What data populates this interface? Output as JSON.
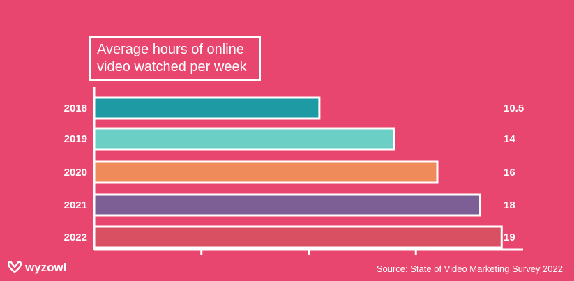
{
  "chart_data": {
    "type": "bar",
    "orientation": "horizontal",
    "title_lines": [
      "Average hours of online",
      "video watched per week"
    ],
    "categories": [
      "2018",
      "2019",
      "2020",
      "2021",
      "2022"
    ],
    "values": [
      10.5,
      14,
      16,
      18,
      19
    ],
    "value_labels": [
      "10.5",
      "14",
      "16",
      "18",
      "19"
    ],
    "colors": [
      "#1e9aa4",
      "#6ccfc6",
      "#ef8a5b",
      "#7e5f95",
      "#d95062"
    ],
    "xlim": [
      0,
      20
    ],
    "grid": false,
    "source": "Source: State of Video Marketing Survey 2022"
  },
  "brand": {
    "name": "wyzowl"
  },
  "colors": {
    "background": "#e8466e",
    "outline": "#ffffff"
  }
}
